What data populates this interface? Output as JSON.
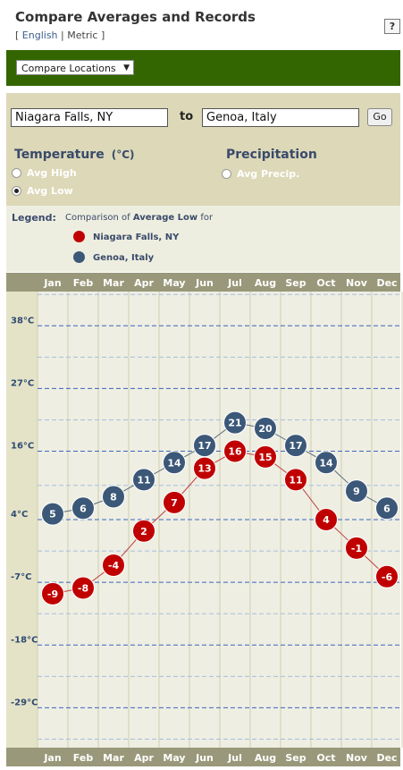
{
  "header": {
    "title": "Compare Averages and Records",
    "units_open": "[",
    "unit_english": "English",
    "unit_sep": "|",
    "unit_metric": "Metric",
    "units_close": "]",
    "help": "?"
  },
  "toolbar": {
    "compare_select": "Compare Locations"
  },
  "form": {
    "location1": "Niagara Falls, NY",
    "to_label": "to",
    "location2": "Genoa, Italy",
    "go_label": "Go"
  },
  "temperature": {
    "title": "Temperature",
    "unit": "(°C)",
    "options": [
      {
        "label": "Avg High",
        "selected": false
      },
      {
        "label": "Avg Low",
        "selected": true
      }
    ]
  },
  "precipitation": {
    "title": "Precipitation",
    "options": [
      {
        "label": "Avg Precip.",
        "selected": false
      }
    ]
  },
  "legend": {
    "title": "Legend:",
    "text_pre": "Comparison of ",
    "text_bold": "Average Low",
    "text_post": " for",
    "items": [
      {
        "name": "Niagara Falls, NY",
        "color": "#c00000"
      },
      {
        "name": "Genoa, Italy",
        "color": "#3c5878"
      }
    ]
  },
  "chart_data": {
    "type": "line",
    "categories": [
      "Jan",
      "Feb",
      "Mar",
      "Apr",
      "May",
      "Jun",
      "Jul",
      "Aug",
      "Sep",
      "Oct",
      "Nov",
      "Dec"
    ],
    "y_tick_labels": [
      "38°C",
      "27°C",
      "16°C",
      "4°C",
      "-7°C",
      "-18°C",
      "-29°C"
    ],
    "y_ticks": [
      38,
      27,
      16,
      4,
      -7,
      -18,
      -29
    ],
    "ylim": [
      -36,
      44
    ],
    "grid": true,
    "series": [
      {
        "name": "Niagara Falls, NY",
        "color": "#c00000",
        "values": [
          -9,
          -8,
          -4,
          2,
          7,
          13,
          16,
          15,
          11,
          4,
          -1,
          -6
        ]
      },
      {
        "name": "Genoa, Italy",
        "color": "#3c5878",
        "values": [
          5,
          6,
          8,
          11,
          14,
          17,
          21,
          20,
          17,
          14,
          9,
          6
        ]
      }
    ]
  }
}
